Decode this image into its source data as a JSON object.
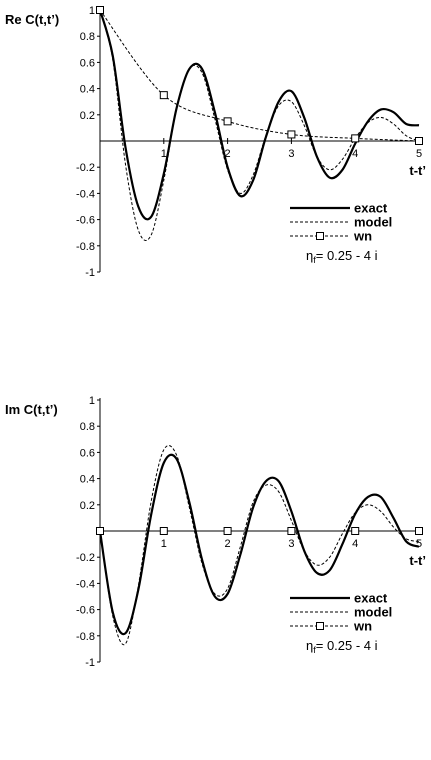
{
  "chart_data": [
    {
      "type": "line",
      "ylabel": "Re C(t,t’)",
      "xlabel": "t-t’",
      "xlim": [
        0,
        5
      ],
      "ylim": [
        -1,
        1
      ],
      "xticks": [
        "1",
        "2",
        "3",
        "4",
        "5"
      ],
      "yticks": [
        "1",
        "0.8",
        "0.6",
        "0.4",
        "0.2",
        "-0.2",
        "-0.4",
        "-0.6",
        "-0.8",
        "-1"
      ],
      "annotation": {
        "symbol": "η",
        "subscript": "f",
        "text": "= 0.25 - 4 i"
      },
      "legend_position": "bottom-right",
      "series": [
        {
          "name": "exact",
          "style": "solid-thick",
          "marker": "none",
          "x": [
            0,
            0.2,
            0.4,
            0.6,
            0.8,
            1.0,
            1.2,
            1.4,
            1.6,
            1.8,
            2.0,
            2.2,
            2.4,
            2.6,
            2.8,
            3.0,
            3.2,
            3.4,
            3.6,
            3.8,
            4.0,
            4.2,
            4.4,
            4.6,
            4.8,
            5.0
          ],
          "y": [
            1.0,
            0.65,
            -0.05,
            -0.5,
            -0.58,
            -0.25,
            0.25,
            0.55,
            0.55,
            0.22,
            -0.2,
            -0.42,
            -0.3,
            0.03,
            0.3,
            0.38,
            0.18,
            -0.12,
            -0.28,
            -0.22,
            -0.02,
            0.15,
            0.24,
            0.22,
            0.13,
            0.12
          ]
        },
        {
          "name": "model",
          "style": "dashed-thin",
          "marker": "none",
          "x": [
            0,
            0.2,
            0.4,
            0.6,
            0.8,
            1.0,
            1.2,
            1.4,
            1.6,
            1.8,
            2.0,
            2.2,
            2.4,
            2.6,
            2.8,
            3.0,
            3.2,
            3.4,
            3.6,
            3.8,
            4.0,
            4.2,
            4.4,
            4.6,
            4.8,
            5.0
          ],
          "y": [
            1.0,
            0.62,
            -0.18,
            -0.68,
            -0.72,
            -0.3,
            0.25,
            0.55,
            0.52,
            0.17,
            -0.22,
            -0.4,
            -0.26,
            0.04,
            0.27,
            0.3,
            0.12,
            -0.12,
            -0.22,
            -0.14,
            0.02,
            0.14,
            0.18,
            0.13,
            0.04,
            0.0
          ]
        },
        {
          "name": "wn",
          "style": "dashed-thin",
          "marker": "square",
          "x": [
            0,
            1,
            2,
            3,
            4,
            5
          ],
          "y": [
            1.0,
            0.35,
            0.15,
            0.05,
            0.02,
            0.0
          ]
        }
      ]
    },
    {
      "type": "line",
      "ylabel": "Im C(t,t’)",
      "xlabel": "t-t’",
      "xlim": [
        0,
        5
      ],
      "ylim": [
        -1,
        1
      ],
      "xticks": [
        "1",
        "2",
        "3",
        "4",
        "5"
      ],
      "yticks": [
        "1",
        "0.8",
        "0.6",
        "0.4",
        "0.2",
        "-0.2",
        "-0.4",
        "-0.6",
        "-0.8",
        "-1"
      ],
      "annotation": {
        "symbol": "η",
        "subscript": "f",
        "text": "= 0.25 - 4 i"
      },
      "legend_position": "bottom-right",
      "series": [
        {
          "name": "exact",
          "style": "solid-thick",
          "marker": "none",
          "x": [
            0,
            0.2,
            0.4,
            0.6,
            0.8,
            1.0,
            1.2,
            1.4,
            1.6,
            1.8,
            2.0,
            2.2,
            2.4,
            2.6,
            2.8,
            3.0,
            3.2,
            3.4,
            3.6,
            3.8,
            4.0,
            4.2,
            4.4,
            4.6,
            4.8,
            5.0
          ],
          "y": [
            0.0,
            -0.62,
            -0.78,
            -0.45,
            0.12,
            0.52,
            0.55,
            0.22,
            -0.22,
            -0.5,
            -0.48,
            -0.18,
            0.18,
            0.38,
            0.38,
            0.15,
            -0.15,
            -0.32,
            -0.3,
            -0.1,
            0.13,
            0.26,
            0.26,
            0.1,
            -0.08,
            -0.12
          ]
        },
        {
          "name": "model",
          "style": "dashed-thin",
          "marker": "none",
          "x": [
            0,
            0.2,
            0.4,
            0.6,
            0.8,
            1.0,
            1.2,
            1.4,
            1.6,
            1.8,
            2.0,
            2.2,
            2.4,
            2.6,
            2.8,
            3.0,
            3.2,
            3.4,
            3.6,
            3.8,
            4.0,
            4.2,
            4.4,
            4.6,
            4.8,
            5.0
          ],
          "y": [
            0.0,
            -0.65,
            -0.86,
            -0.42,
            0.22,
            0.62,
            0.58,
            0.18,
            -0.25,
            -0.48,
            -0.44,
            -0.12,
            0.22,
            0.35,
            0.3,
            0.08,
            -0.15,
            -0.26,
            -0.2,
            -0.02,
            0.14,
            0.2,
            0.15,
            0.03,
            -0.06,
            -0.08
          ]
        },
        {
          "name": "wn",
          "style": "dashed-thin",
          "marker": "square",
          "x": [
            0,
            1,
            2,
            3,
            4,
            5
          ],
          "y": [
            0,
            0,
            0,
            0,
            0,
            0
          ]
        }
      ]
    }
  ]
}
